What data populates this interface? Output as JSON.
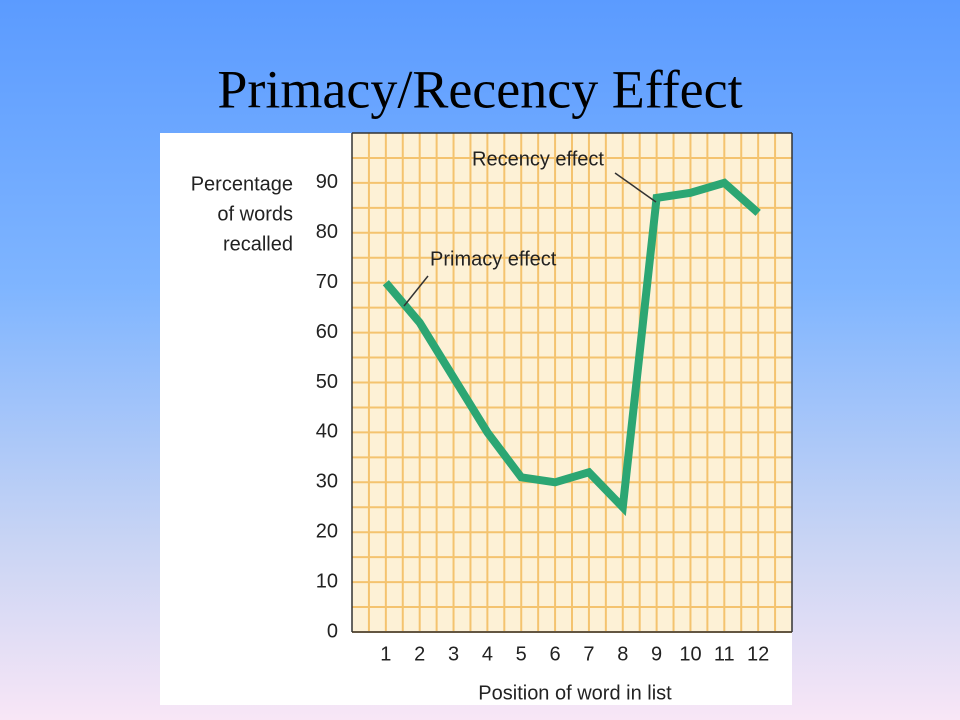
{
  "chart_data": {
    "type": "line",
    "title": "Primacy/Recency Effect",
    "ylabel": [
      "Percentage",
      "of words",
      "recalled"
    ],
    "xlabel": "Position of word in list",
    "x": [
      1,
      2,
      3,
      4,
      5,
      6,
      7,
      8,
      9,
      10,
      11,
      12
    ],
    "series": [
      {
        "color": "#2ca673",
        "values": [
          70,
          62,
          51,
          40,
          31,
          30,
          32,
          25,
          87,
          88,
          90,
          84
        ]
      }
    ],
    "xlim": [
      0,
      13
    ],
    "xticks": [
      1,
      2,
      3,
      4,
      5,
      6,
      7,
      8,
      9,
      10,
      11,
      12
    ],
    "ylim": [
      0,
      100
    ],
    "yticks": [
      0,
      10,
      20,
      30,
      40,
      50,
      60,
      70,
      80,
      90
    ],
    "grid": true,
    "annotations": [
      "Recency effect",
      "Primacy effect"
    ]
  }
}
